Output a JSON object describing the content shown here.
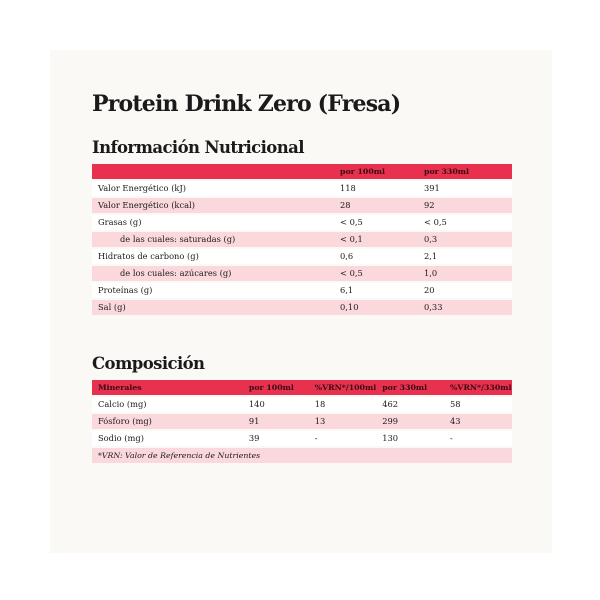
{
  "title": "Protein Drink Zero (Fresa)",
  "nutrition": {
    "heading": "Información Nutricional",
    "columns": [
      "",
      "por 100ml",
      "por 330ml"
    ],
    "rows": [
      {
        "label": "Valor Energético (kJ)",
        "per100": "118",
        "per330": "391"
      },
      {
        "label": "Valor Energético (kcal)",
        "per100": "28",
        "per330": "92"
      },
      {
        "label": "Grasas (g)",
        "per100": "< 0,5",
        "per330": "< 0,5"
      },
      {
        "label": "de las cuales: saturadas (g)",
        "per100": "< 0,1",
        "per330": "0,3"
      },
      {
        "label": "Hidratos de carbono (g)",
        "per100": "0,6",
        "per330": "2,1"
      },
      {
        "label": "de los cuales: azúcares (g)",
        "per100": "< 0,5",
        "per330": "1,0"
      },
      {
        "label": "Proteínas (g)",
        "per100": "6,1",
        "per330": "20"
      },
      {
        "label": "Sal (g)",
        "per100": "0,10",
        "per330": "0,33"
      }
    ]
  },
  "composition": {
    "heading": "Composición",
    "columns": [
      "Minerales",
      "por 100ml",
      "%VRN*/100ml",
      "por 330ml",
      "%VRN*/330ml"
    ],
    "rows": [
      {
        "label": "Calcio (mg)",
        "per100": "140",
        "vrn100": "18",
        "per330": "462",
        "vrn330": "58"
      },
      {
        "label": "Fósforo (mg)",
        "per100": "91",
        "vrn100": "13",
        "per330": "299",
        "vrn330": "43"
      },
      {
        "label": "Sodio (mg)",
        "per100": "39",
        "vrn100": "-",
        "per330": "130",
        "vrn330": "-"
      }
    ],
    "footnote": "*VRN: Valor de Referencia de Nutrientes"
  },
  "colors": {
    "header_red": "#e8304f",
    "row_pink": "#fbd8dc",
    "card_bg": "#fbf9f6"
  }
}
